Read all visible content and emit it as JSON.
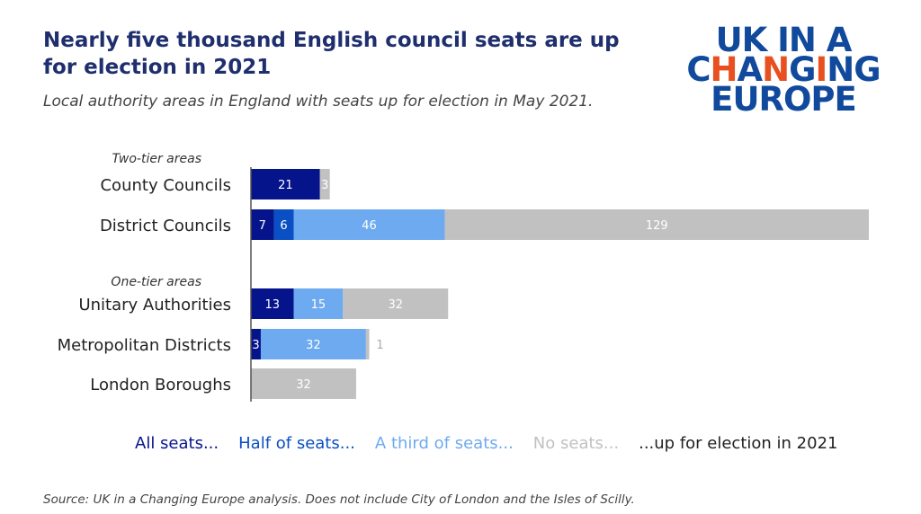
{
  "title": "Nearly five thousand English council seats are up for election in 2021",
  "subtitle": "Local authority areas in England with seats up for election in May 2021.",
  "logo_text": "UK IN A CHANGING EUROPE",
  "source": "Source: UK in a Changing Europe analysis. Does not include City of London and the Isles of Scilly.",
  "legend": [
    "All seats...",
    "Half of seats...",
    "A third of seats...",
    "No seats...",
    "...up for election in 2021"
  ],
  "colors": {
    "all": "#06148c",
    "half": "#0a4fc4",
    "third": "#6eaaf0",
    "none": "#c1c1c1",
    "suffix": "#222222"
  },
  "chart_data": {
    "type": "bar",
    "orientation": "horizontal",
    "stacked": true,
    "groups": [
      {
        "label": "Two-tier areas",
        "categories": [
          "County Councils",
          "District Councils"
        ]
      },
      {
        "label": "One-tier areas",
        "categories": [
          "Unitary Authorities",
          "Metropolitan Districts",
          "London Boroughs"
        ]
      }
    ],
    "categories": [
      "County Councils",
      "District Councils",
      "Unitary Authorities",
      "Metropolitan Districts",
      "London Boroughs"
    ],
    "series": [
      {
        "name": "All seats...",
        "values": [
          21,
          7,
          13,
          3,
          0
        ]
      },
      {
        "name": "Half of seats...",
        "values": [
          0,
          6,
          0,
          0,
          0
        ]
      },
      {
        "name": "A third of seats...",
        "values": [
          0,
          46,
          15,
          32,
          0
        ]
      },
      {
        "name": "No seats...",
        "values": [
          3,
          129,
          32,
          1,
          32
        ]
      }
    ],
    "grid": false
  }
}
